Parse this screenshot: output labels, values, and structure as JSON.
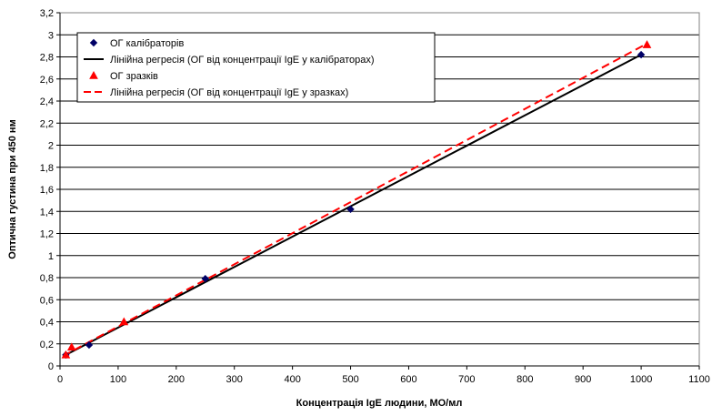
{
  "chart_data": {
    "type": "scatter",
    "xlabel": "Концентрація IgE людини, МО/мл",
    "ylabel": "Оптична густина при 450 нм",
    "xlim": [
      0,
      1100
    ],
    "ylim": [
      0,
      3.2
    ],
    "x_ticks": [
      "0",
      "100",
      "200",
      "300",
      "400",
      "500",
      "600",
      "700",
      "800",
      "900",
      "1000",
      "1100"
    ],
    "y_ticks": [
      "0",
      "0,2",
      "0,4",
      "0,6",
      "0,8",
      "1",
      "1,2",
      "1,4",
      "1,6",
      "1,8",
      "2",
      "2,2",
      "2,4",
      "2,6",
      "2,8",
      "3",
      "3,2"
    ],
    "grid": "horizontal",
    "legend_position": "top-left",
    "series": [
      {
        "name": "ОГ калібраторів",
        "kind": "points",
        "marker": "diamond",
        "color": "#000066",
        "x": [
          10,
          50,
          250,
          500,
          1000
        ],
        "y": [
          0.1,
          0.19,
          0.79,
          1.42,
          2.82
        ]
      },
      {
        "name": "Лінійна регресія (ОГ від концентрації IgE у калібраторах)",
        "kind": "line",
        "style": "solid",
        "color": "#000000",
        "x": [
          10,
          1000
        ],
        "y": [
          0.1,
          2.82
        ]
      },
      {
        "name": "ОГ зразків",
        "kind": "points",
        "marker": "triangle",
        "color": "#ff0000",
        "x": [
          10,
          20,
          110,
          1010
        ],
        "y": [
          0.1,
          0.17,
          0.4,
          2.91
        ]
      },
      {
        "name": "Лінійна регресія (ОГ від концентрації IgE у зразках)",
        "kind": "line",
        "style": "dashed",
        "color": "#ff0000",
        "x": [
          5,
          1010
        ],
        "y": [
          0.09,
          2.92
        ]
      }
    ]
  }
}
